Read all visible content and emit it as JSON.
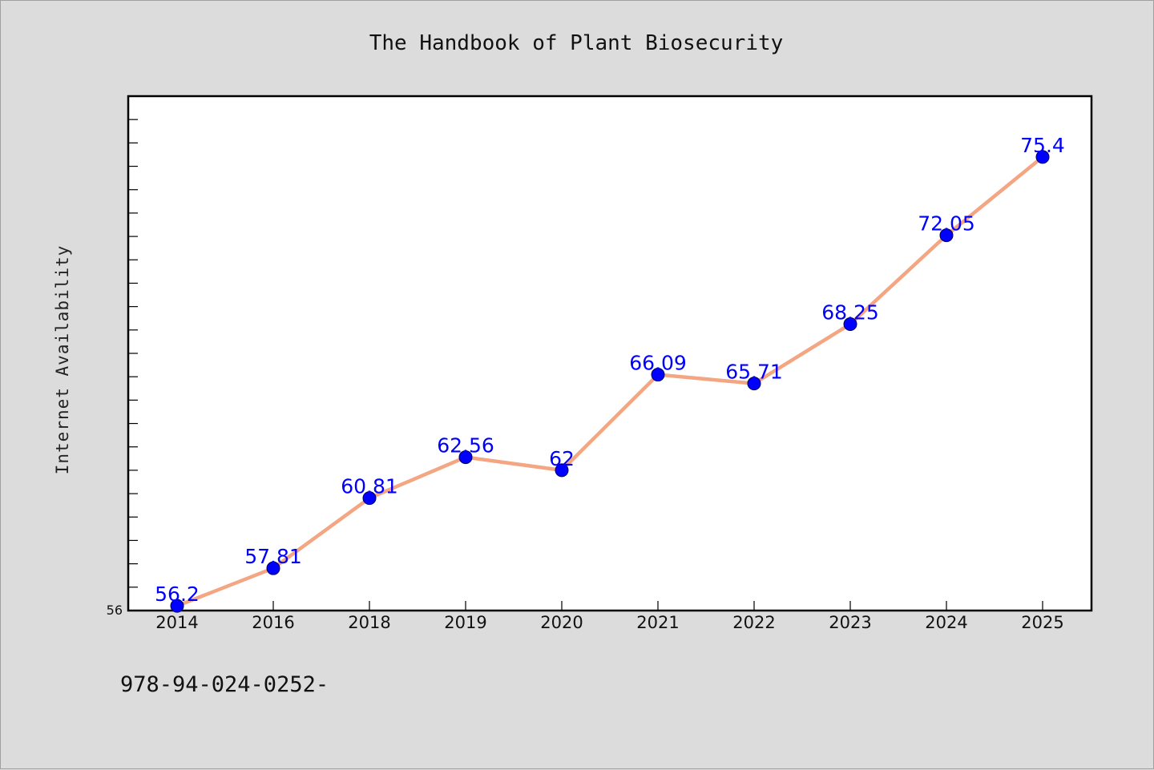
{
  "chart_data": {
    "type": "line",
    "title": "The Handbook of Plant Biosecurity",
    "xlabel": "",
    "ylabel": "Internet Availability",
    "categories": [
      "2014",
      "2016",
      "2018",
      "2019",
      "2020",
      "2021",
      "2022",
      "2023",
      "2024",
      "2025"
    ],
    "values": [
      56.2,
      57.81,
      60.81,
      62.56,
      62,
      66.09,
      65.71,
      68.25,
      72.05,
      75.4
    ],
    "data_labels": [
      "56.2",
      "57.81",
      "60.81",
      "62.56",
      "62",
      "66.09",
      "65.71",
      "68.25",
      "72.05",
      "75.4"
    ],
    "ylim": [
      56,
      78
    ],
    "y_tick_labels": [
      "56"
    ],
    "grid": false,
    "line_color": "#f4a582",
    "marker_color": "#0000ff",
    "label_color": "#0000ff",
    "background_color": "#dcdcdc",
    "plot_background_color": "#ffffff"
  },
  "footer": {
    "isbn_text": "978-94-024-0252-"
  }
}
